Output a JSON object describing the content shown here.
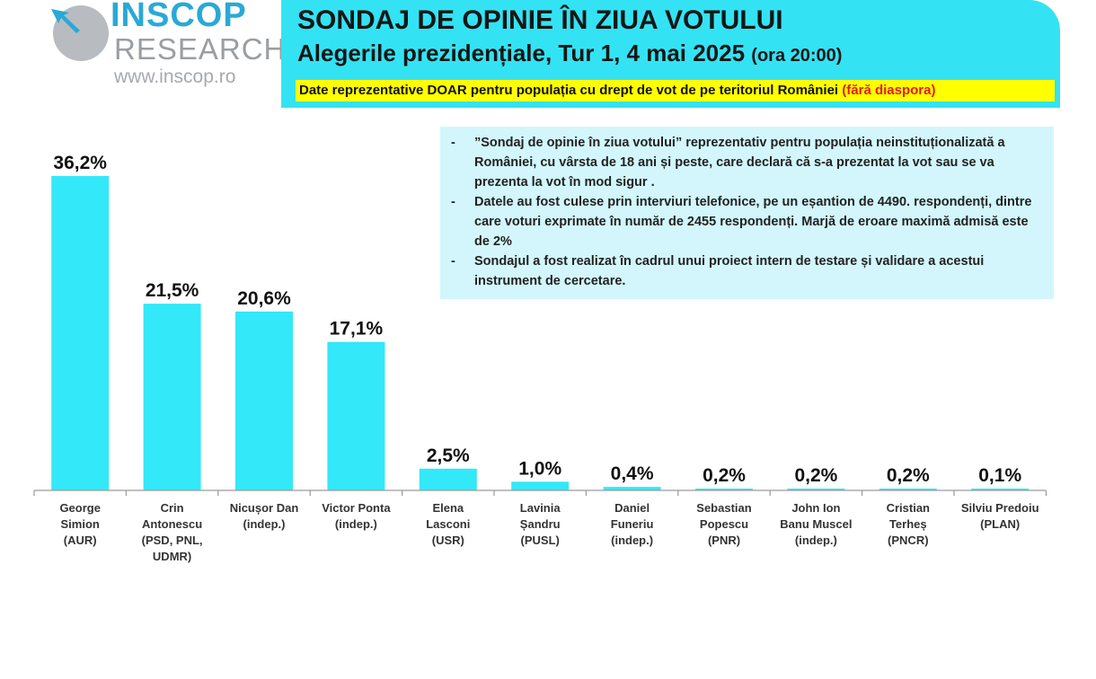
{
  "logo": {
    "name": "INSCOP",
    "sub": "RESEARCH",
    "url": "www.inscop.ro"
  },
  "header": {
    "title": "SONDAJ DE OPINIE ÎN ZIUA VOTULUI",
    "subtitle": "Alegerile prezidențiale, Tur 1, 4 mai 2025",
    "time": "(ora 20:00)",
    "notice": "Date reprezentative DOAR pentru populația cu drept de vot de pe teritoriul României",
    "notice_red": "(fără diaspora)"
  },
  "info": {
    "items": [
      "”Sondaj de opinie în ziua votului” reprezentativ pentru populația neinstituționalizată a României, cu vârsta de 18 ani și peste, care declară că s-a prezentat la vot sau se va prezenta la vot în mod sigur .",
      "Datele au fost culese prin interviuri telefonice, pe un eșantion de 4490. respondenți, dintre care voturi exprimate în număr de 2455 respondenți. Marjă de eroare maximă admisă este de 2%",
      "Sondajul a fost realizat în cadrul unui proiect intern de testare și validare a acestui instrument de cercetare."
    ]
  },
  "colors": {
    "bar": "#33e8f8",
    "axis": "#9a9a9a",
    "banner": "#33e3f3",
    "notice": "#ffff00"
  },
  "chart_data": {
    "type": "bar",
    "categories": [
      [
        "George",
        "Simion",
        "(AUR)"
      ],
      [
        "Crin",
        "Antonescu",
        "(PSD, PNL,",
        "UDMR)"
      ],
      [
        "Nicușor Dan",
        "(indep.)"
      ],
      [
        "Victor Ponta",
        "(indep.)"
      ],
      [
        "Elena",
        "Lasconi",
        "(USR)"
      ],
      [
        "Lavinia",
        "Șandru",
        "(PUSL)"
      ],
      [
        "Daniel",
        "Funeriu",
        "(indep.)"
      ],
      [
        "Sebastian",
        "Popescu",
        "(PNR)"
      ],
      [
        "John Ion",
        "Banu Muscel",
        "(indep.)"
      ],
      [
        "Cristian",
        "Terheș",
        "(PNCR)"
      ],
      [
        "Silviu Predoiu",
        "(PLAN)"
      ]
    ],
    "values": [
      36.2,
      21.5,
      20.6,
      17.1,
      2.5,
      1.0,
      0.4,
      0.2,
      0.2,
      0.2,
      0.1
    ],
    "labels": [
      "36,2%",
      "21,5%",
      "20,6%",
      "17,1%",
      "2,5%",
      "1,0%",
      "0,4%",
      "0,2%",
      "0,2%",
      "0,2%",
      "0,1%"
    ],
    "ylim": [
      0,
      36.2
    ]
  }
}
